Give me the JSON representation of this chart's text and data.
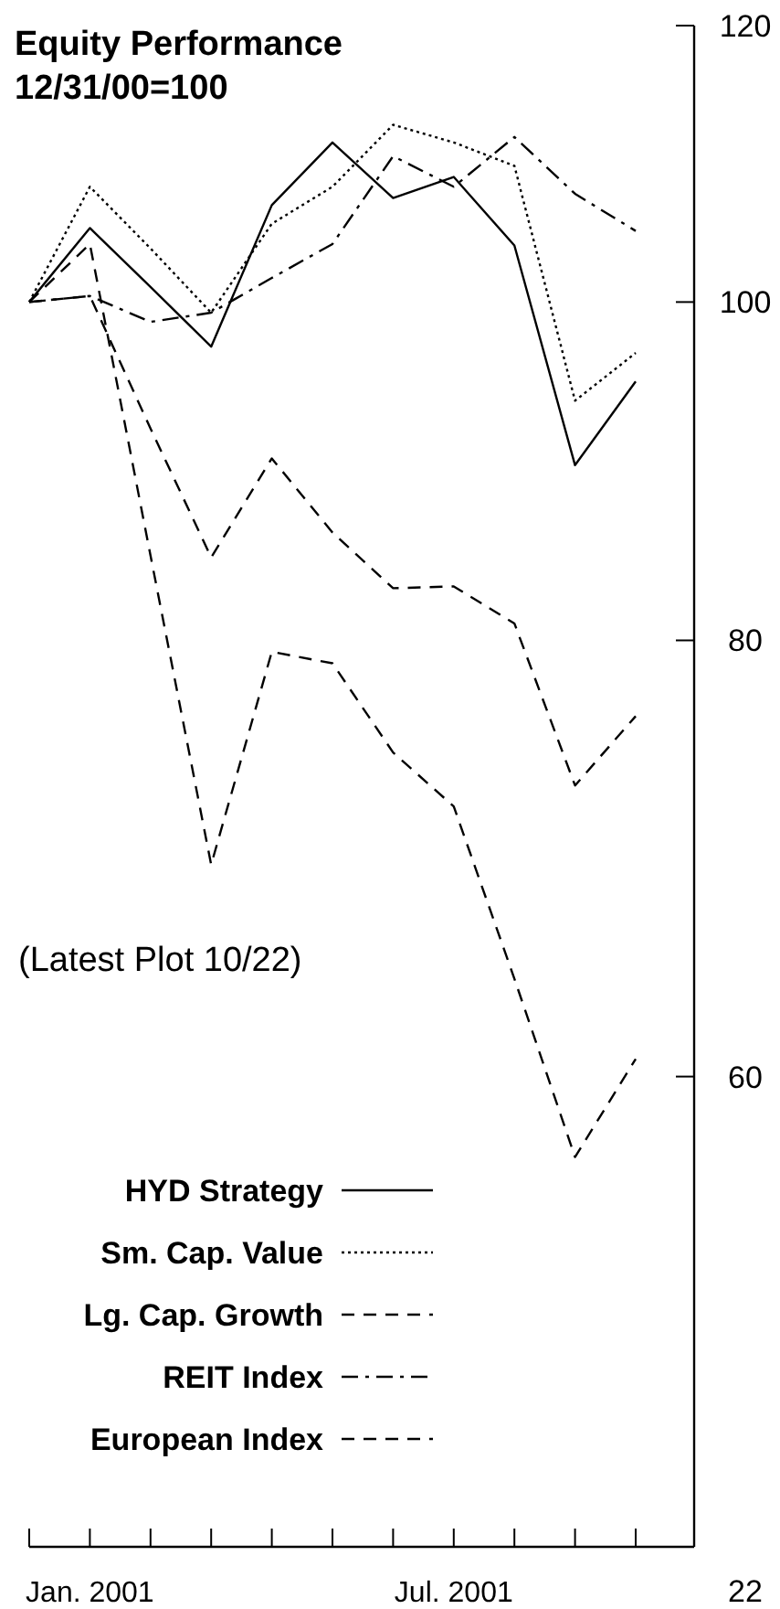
{
  "chart_data": {
    "type": "line",
    "title": "Equity Performance",
    "subtitle": "12/31/00=100",
    "categories": [
      null,
      "Jan. 2001",
      null,
      null,
      null,
      null,
      null,
      "Jul. 2001",
      null,
      null,
      null
    ],
    "series": [
      {
        "name": "HYD Strategy",
        "color": "#000000",
        "line_style": "solid",
        "values": [
          100,
          105.0,
          101.0,
          97.1,
          106.6,
          111.1,
          107.1,
          108.6,
          103.8,
          89.8,
          94.9
        ]
      },
      {
        "name": "Sm. Cap. Value",
        "color": "#000000",
        "line_style": "dotted",
        "values": [
          100,
          107.9,
          103.6,
          99.3,
          105.3,
          107.9,
          112.4,
          111.1,
          109.4,
          93.7,
          96.7
        ]
      },
      {
        "name": "Lg. Cap. Growth",
        "color": "#000000",
        "line_style": "dashed",
        "values": [
          100,
          103.9,
          84.6,
          69.0,
          79.4,
          78.8,
          74.3,
          71.7,
          64.0,
          56.9,
          60.7
        ]
      },
      {
        "name": "REIT Index",
        "color": "#000000",
        "line_style": "dashdot",
        "values": [
          100,
          100.4,
          98.7,
          99.3,
          101.6,
          103.9,
          110.1,
          107.9,
          111.5,
          107.4,
          104.8
        ]
      },
      {
        "name": "European Index",
        "color": "#000000",
        "line_style": "dashed",
        "values": [
          100,
          100.4,
          92.0,
          84.5,
          90.2,
          85.9,
          82.8,
          82.9,
          80.9,
          72.7,
          76.1
        ]
      }
    ],
    "log": true,
    "ylim": [
      44,
      120
    ],
    "yticks": [
      60,
      80,
      100,
      120
    ],
    "grid": false,
    "legend": "bottom left",
    "marker": "none",
    "annotations": [
      "(Latest Plot 10/22)",
      "22"
    ]
  }
}
